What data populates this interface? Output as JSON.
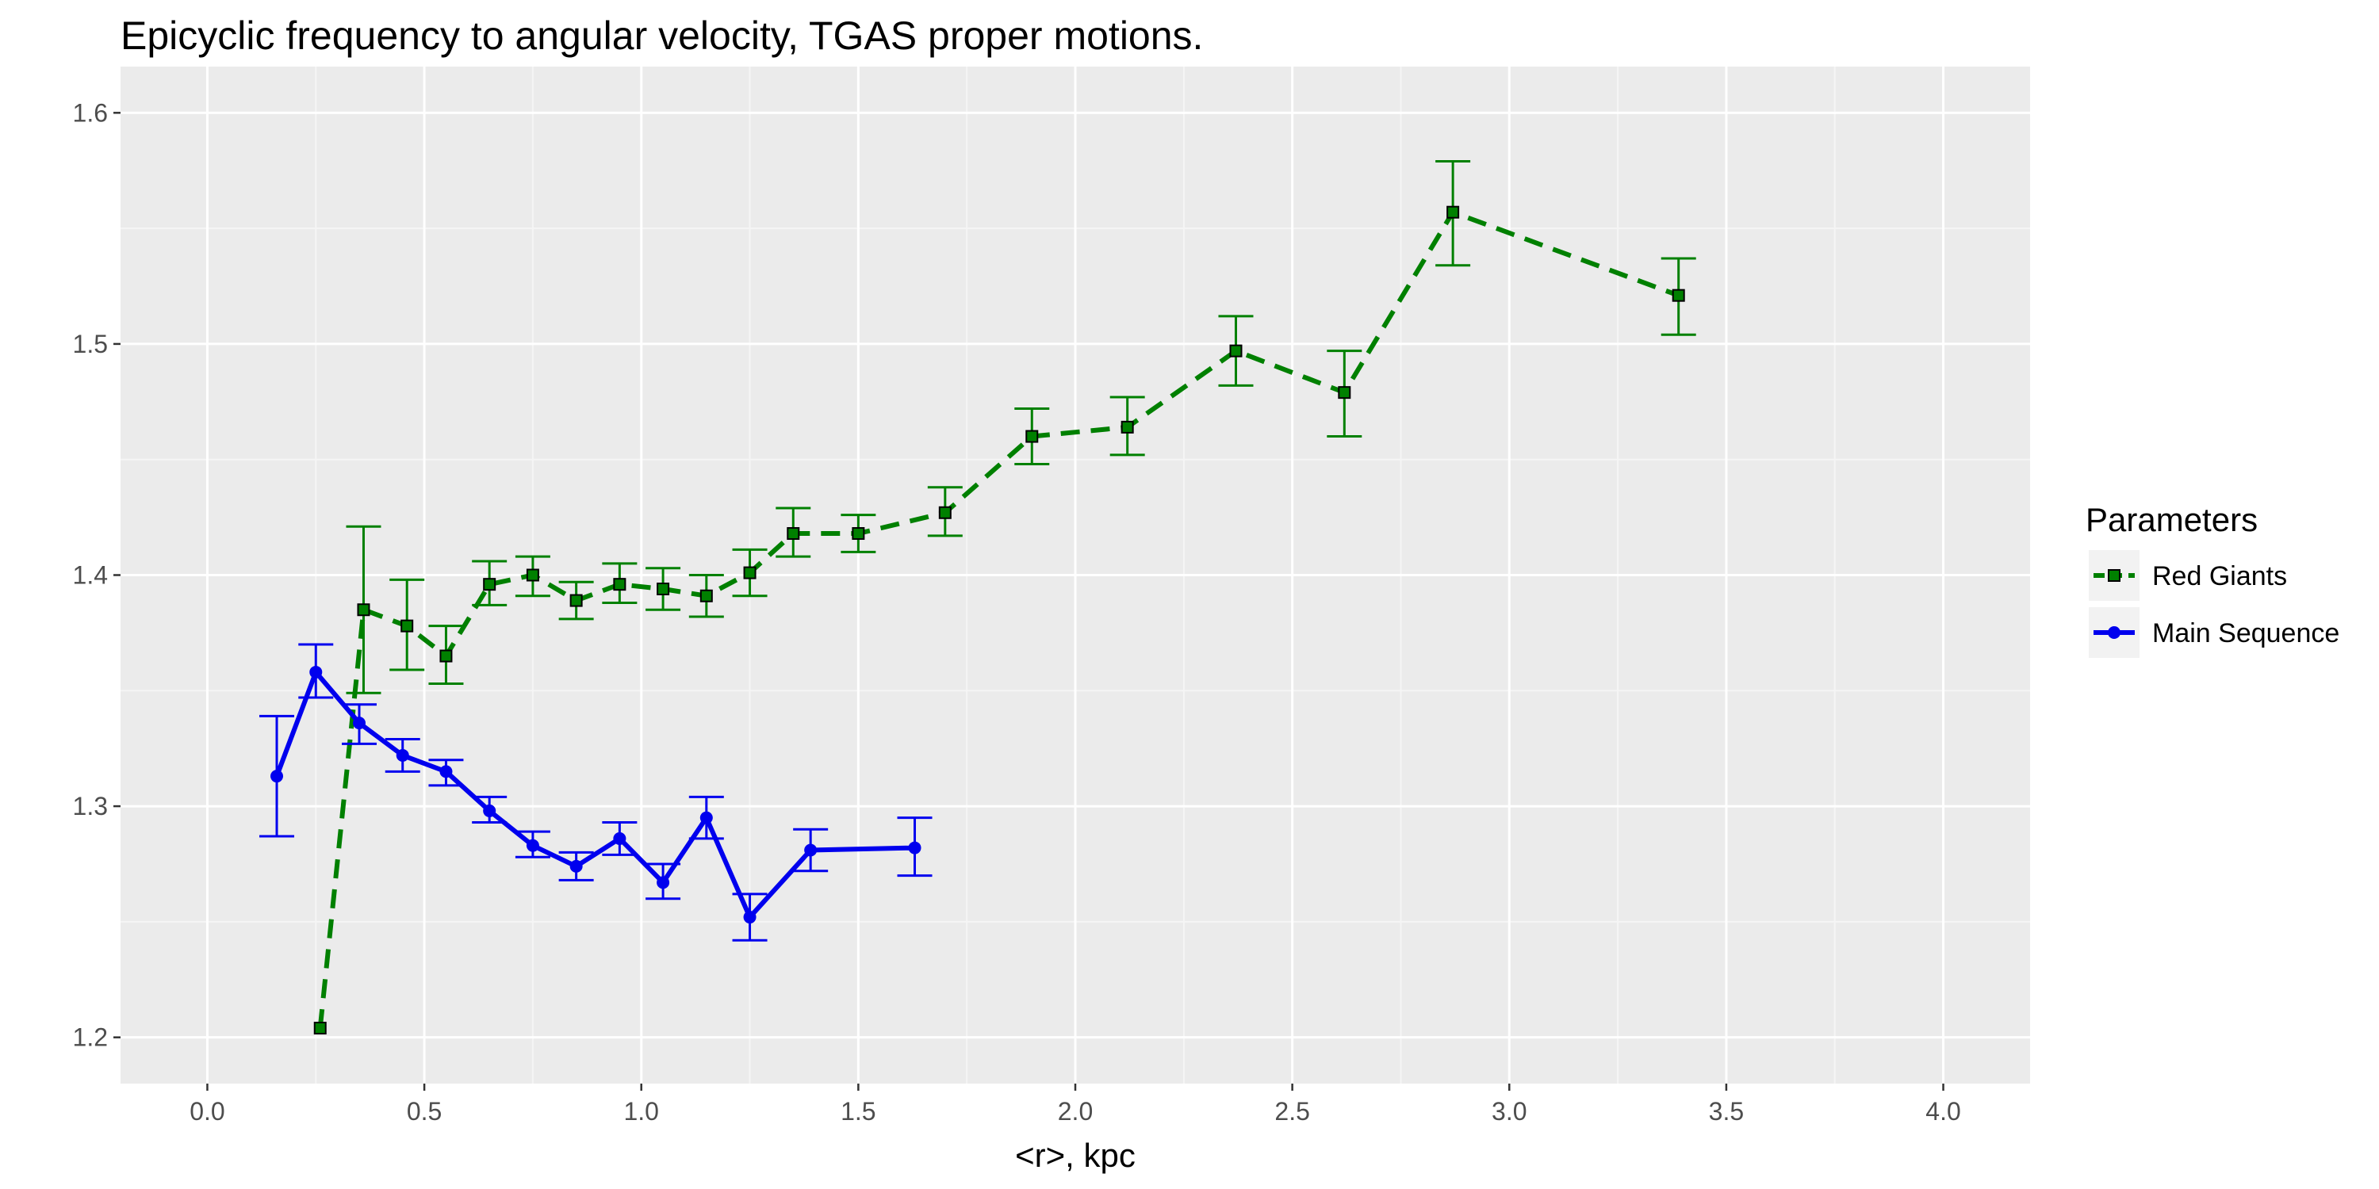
{
  "chart_data": {
    "type": "line",
    "title": "Epicyclic frequency to angular velocity,  TGAS  proper motions.",
    "xlabel": "<r>, kpc",
    "ylabel": "",
    "xlim": [
      -0.2,
      4.2
    ],
    "ylim": [
      1.18,
      1.62
    ],
    "x_ticks": [
      0.0,
      0.5,
      1.0,
      1.5,
      2.0,
      2.5,
      3.0,
      3.5,
      4.0
    ],
    "x_tick_labels": [
      "0.0",
      "0.5",
      "1.0",
      "1.5",
      "2.0",
      "2.5",
      "3.0",
      "3.5",
      "4.0"
    ],
    "y_ticks": [
      1.2,
      1.3,
      1.4,
      1.5,
      1.6
    ],
    "y_tick_labels": [
      "1.2",
      "1.3",
      "1.4",
      "1.5",
      "1.6"
    ],
    "grid": true,
    "legend": {
      "title": "Parameters",
      "position": "right"
    },
    "series": [
      {
        "name": "Red Giants",
        "color": "#008000",
        "line_style": "dashed",
        "marker": "square",
        "points": [
          {
            "x": 0.26,
            "y": 1.204,
            "lo": null,
            "hi": null
          },
          {
            "x": 0.36,
            "y": 1.385,
            "lo": 1.349,
            "hi": 1.421
          },
          {
            "x": 0.46,
            "y": 1.378,
            "lo": 1.359,
            "hi": 1.398
          },
          {
            "x": 0.55,
            "y": 1.365,
            "lo": 1.353,
            "hi": 1.378
          },
          {
            "x": 0.65,
            "y": 1.396,
            "lo": 1.387,
            "hi": 1.406
          },
          {
            "x": 0.75,
            "y": 1.4,
            "lo": 1.391,
            "hi": 1.408
          },
          {
            "x": 0.85,
            "y": 1.389,
            "lo": 1.381,
            "hi": 1.397
          },
          {
            "x": 0.95,
            "y": 1.396,
            "lo": 1.388,
            "hi": 1.405
          },
          {
            "x": 1.05,
            "y": 1.394,
            "lo": 1.385,
            "hi": 1.403
          },
          {
            "x": 1.15,
            "y": 1.391,
            "lo": 1.382,
            "hi": 1.4
          },
          {
            "x": 1.25,
            "y": 1.401,
            "lo": 1.391,
            "hi": 1.411
          },
          {
            "x": 1.35,
            "y": 1.418,
            "lo": 1.408,
            "hi": 1.429
          },
          {
            "x": 1.5,
            "y": 1.418,
            "lo": 1.41,
            "hi": 1.426
          },
          {
            "x": 1.7,
            "y": 1.427,
            "lo": 1.417,
            "hi": 1.438
          },
          {
            "x": 1.9,
            "y": 1.46,
            "lo": 1.448,
            "hi": 1.472
          },
          {
            "x": 2.12,
            "y": 1.464,
            "lo": 1.452,
            "hi": 1.477
          },
          {
            "x": 2.37,
            "y": 1.497,
            "lo": 1.482,
            "hi": 1.512
          },
          {
            "x": 2.62,
            "y": 1.479,
            "lo": 1.46,
            "hi": 1.497
          },
          {
            "x": 2.87,
            "y": 1.557,
            "lo": 1.534,
            "hi": 1.579
          },
          {
            "x": 3.39,
            "y": 1.521,
            "lo": 1.504,
            "hi": 1.537
          }
        ]
      },
      {
        "name": "Main Sequence",
        "color": "#0000ee",
        "line_style": "solid",
        "marker": "circle",
        "points": [
          {
            "x": 0.16,
            "y": 1.313,
            "lo": 1.287,
            "hi": 1.339
          },
          {
            "x": 0.25,
            "y": 1.358,
            "lo": 1.347,
            "hi": 1.37
          },
          {
            "x": 0.35,
            "y": 1.336,
            "lo": 1.327,
            "hi": 1.344
          },
          {
            "x": 0.45,
            "y": 1.322,
            "lo": 1.315,
            "hi": 1.329
          },
          {
            "x": 0.55,
            "y": 1.315,
            "lo": 1.309,
            "hi": 1.32
          },
          {
            "x": 0.65,
            "y": 1.298,
            "lo": 1.293,
            "hi": 1.304
          },
          {
            "x": 0.75,
            "y": 1.283,
            "lo": 1.278,
            "hi": 1.289
          },
          {
            "x": 0.85,
            "y": 1.274,
            "lo": 1.268,
            "hi": 1.28
          },
          {
            "x": 0.95,
            "y": 1.286,
            "lo": 1.279,
            "hi": 1.293
          },
          {
            "x": 1.05,
            "y": 1.267,
            "lo": 1.26,
            "hi": 1.275
          },
          {
            "x": 1.15,
            "y": 1.295,
            "lo": 1.286,
            "hi": 1.304
          },
          {
            "x": 1.25,
            "y": 1.252,
            "lo": 1.242,
            "hi": 1.262
          },
          {
            "x": 1.39,
            "y": 1.281,
            "lo": 1.272,
            "hi": 1.29
          },
          {
            "x": 1.63,
            "y": 1.282,
            "lo": 1.27,
            "hi": 1.295
          }
        ]
      }
    ]
  }
}
